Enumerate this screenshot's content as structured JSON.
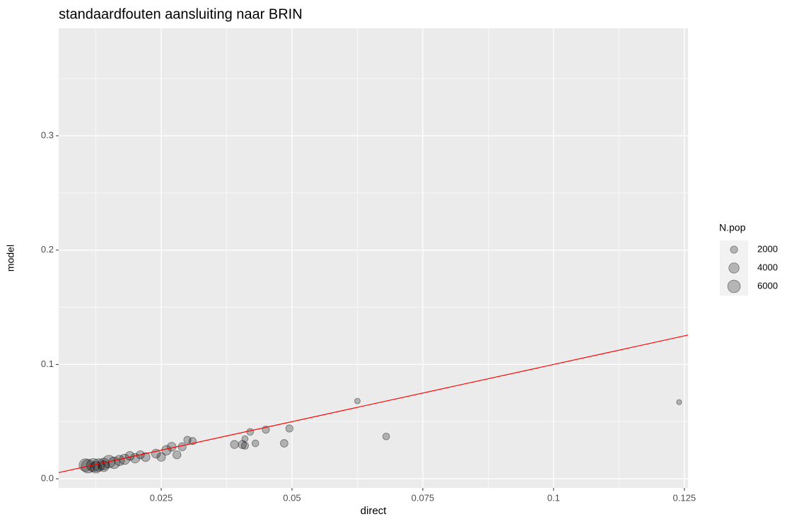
{
  "chart_data": {
    "type": "scatter",
    "title": "standaardfouten aansluiting naar BRIN",
    "x_label": "direct",
    "y_label": "model",
    "xlim": [
      0.0054,
      0.1257
    ],
    "ylim": [
      -0.008,
      0.394
    ],
    "xticks": [
      0.025,
      0.05,
      0.075,
      0.1,
      0.125
    ],
    "x_minor_ticks": [
      0.0125,
      0.0375,
      0.0625,
      0.0875,
      0.1125
    ],
    "yticks": [
      {
        "value": 0,
        "label": "0.0"
      },
      0.1,
      0.2,
      0.3
    ],
    "y_minor_ticks": [
      0.05,
      0.15,
      0.25,
      0.35
    ],
    "grid": true,
    "point_color": "#000000",
    "point_alpha": 0.25,
    "x": [
      0.0625,
      0.124,
      0.068,
      0.0495,
      0.0485,
      0.045,
      0.042,
      0.043,
      0.041,
      0.0405,
      0.039,
      0.041,
      0.03,
      0.029,
      0.031,
      0.027,
      0.028,
      0.026,
      0.024,
      0.022,
      0.02,
      0.019,
      0.018,
      0.017,
      0.016,
      0.015,
      0.014,
      0.013,
      0.012,
      0.011,
      0.0105,
      0.0125,
      0.014,
      0.021,
      0.025
    ],
    "values": [
      0.068,
      0.067,
      0.037,
      0.044,
      0.031,
      0.043,
      0.041,
      0.031,
      0.035,
      0.03,
      0.03,
      0.029,
      0.034,
      0.028,
      0.033,
      0.028,
      0.021,
      0.025,
      0.022,
      0.019,
      0.018,
      0.02,
      0.017,
      0.016,
      0.014,
      0.015,
      0.013,
      0.012,
      0.012,
      0.011,
      0.012,
      0.01,
      0.011,
      0.021,
      0.019
    ],
    "sizes": [
      1200,
      1000,
      1800,
      2000,
      2200,
      2000,
      1800,
      1800,
      1500,
      2500,
      2500,
      2000,
      2000,
      2500,
      2000,
      3000,
      2500,
      3500,
      3000,
      3000,
      3500,
      3000,
      4000,
      4000,
      5000,
      6000,
      5000,
      6000,
      6500,
      7000,
      6000,
      5000,
      4500,
      2500,
      2800
    ],
    "size_legend_title": "N.pop",
    "size_legend": [
      2000,
      4000,
      6000
    ],
    "reference_line": {
      "slope": 1,
      "intercept": 0,
      "color": "#ff0000"
    }
  }
}
